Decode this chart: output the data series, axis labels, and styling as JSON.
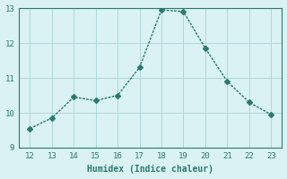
{
  "x": [
    12,
    13,
    14,
    15,
    16,
    17,
    18,
    19,
    20,
    21,
    22,
    23
  ],
  "y": [
    9.55,
    9.85,
    10.45,
    10.35,
    10.5,
    11.3,
    12.95,
    12.9,
    11.85,
    10.9,
    10.3,
    9.95
  ],
  "xlim": [
    11.5,
    23.5
  ],
  "ylim": [
    9,
    13
  ],
  "yticks": [
    9,
    10,
    11,
    12,
    13
  ],
  "xticks": [
    12,
    13,
    14,
    15,
    16,
    17,
    18,
    19,
    20,
    21,
    22,
    23
  ],
  "xlabel": "Humidex (Indice chaleur)",
  "line_color": "#2a7a6f",
  "marker": "D",
  "marker_size": 3,
  "bg_color": "#daf2f2",
  "grid_color": "#b0d8d8",
  "axis_color": "#2a7a6f",
  "label_fontsize": 7,
  "tick_fontsize": 6.5
}
